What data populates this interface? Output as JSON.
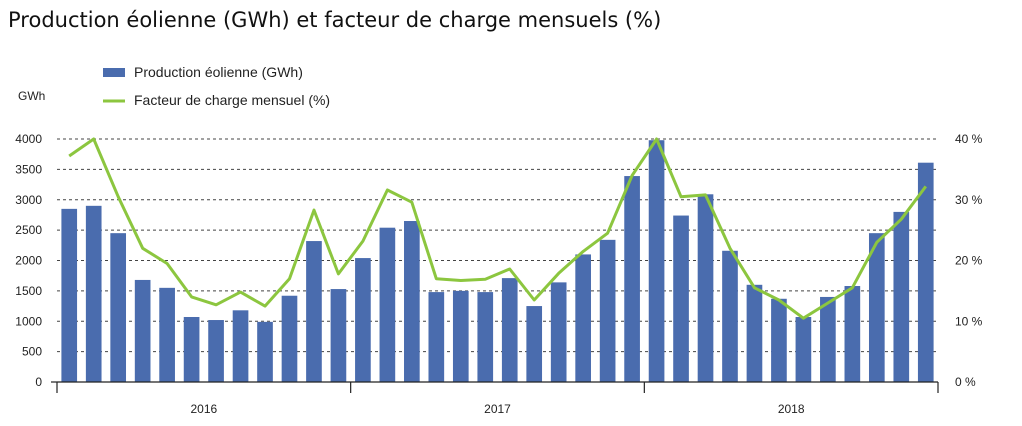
{
  "chart_data": {
    "type": "bar",
    "title": "Production éolienne (GWh) et facteur de charge mensuels (%)",
    "ylabel_left": "GWh",
    "ylim_left": [
      0,
      4000
    ],
    "yticks_left": [
      "0",
      "500",
      "1000",
      "1500",
      "2000",
      "2500",
      "3000",
      "3500",
      "4000"
    ],
    "ylim_right": [
      0,
      40
    ],
    "yticks_right": [
      "0 %",
      "10 %",
      "20 %",
      "30 %",
      "40 %"
    ],
    "year_labels": [
      "2016",
      "2017",
      "2018"
    ],
    "grid": true,
    "legend_position": "top-left",
    "series": [
      {
        "name": "Production éolienne (GWh)",
        "type": "bar",
        "color": "#4a6cae",
        "values": [
          2850,
          2900,
          2450,
          1680,
          1550,
          1070,
          1020,
          1180,
          990,
          1420,
          2320,
          1530,
          2040,
          2540,
          2650,
          1480,
          1500,
          1480,
          1710,
          1250,
          1640,
          2100,
          2340,
          3390,
          3980,
          2740,
          3090,
          2160,
          1600,
          1370,
          1070,
          1400,
          1580,
          2450,
          2800,
          3610
        ]
      },
      {
        "name": "Facteur de charge mensuel (%)",
        "type": "line",
        "color": "#8cc63f",
        "values": [
          37.2,
          40.0,
          30.5,
          22.0,
          19.5,
          14.0,
          12.7,
          14.8,
          12.5,
          17.0,
          28.3,
          17.8,
          23.2,
          31.6,
          29.6,
          17.0,
          16.7,
          16.9,
          18.6,
          13.5,
          17.9,
          21.5,
          24.5,
          34.0,
          40.0,
          30.5,
          30.8,
          22.0,
          15.5,
          13.5,
          10.5,
          13.0,
          15.5,
          23.0,
          26.8,
          32.2
        ]
      }
    ]
  }
}
